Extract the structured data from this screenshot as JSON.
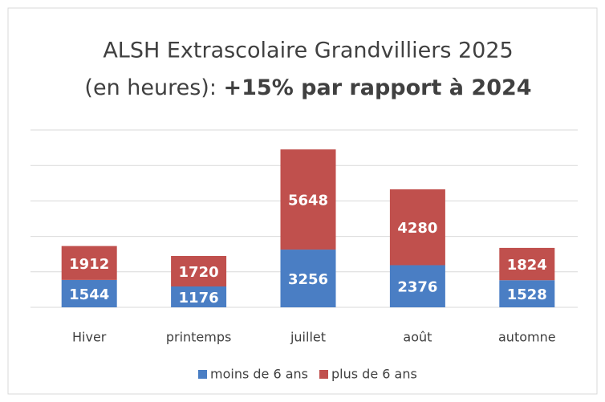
{
  "chart_data": {
    "type": "stacked_bar",
    "title": "ALSH Extrascolaire Grandvilliers 2025",
    "subtitle": "(en heures):",
    "subtitle_emphasis": "+15%  par rapport à 2024",
    "categories": [
      "Hiver",
      "printemps",
      "juillet",
      "août",
      "automne"
    ],
    "series": [
      {
        "name": "moins de 6 ans",
        "color": "#4a7ec4",
        "values": [
          1544,
          1176,
          3256,
          2376,
          1528
        ]
      },
      {
        "name": "plus de 6 ans",
        "color": "#c0504d",
        "values": [
          1912,
          1720,
          5648,
          4280,
          1824
        ]
      }
    ],
    "ylim": [
      0,
      10000
    ],
    "yticks": [
      0,
      2000,
      4000,
      6000,
      8000,
      10000
    ],
    "grid": true,
    "legend": "bottom"
  }
}
